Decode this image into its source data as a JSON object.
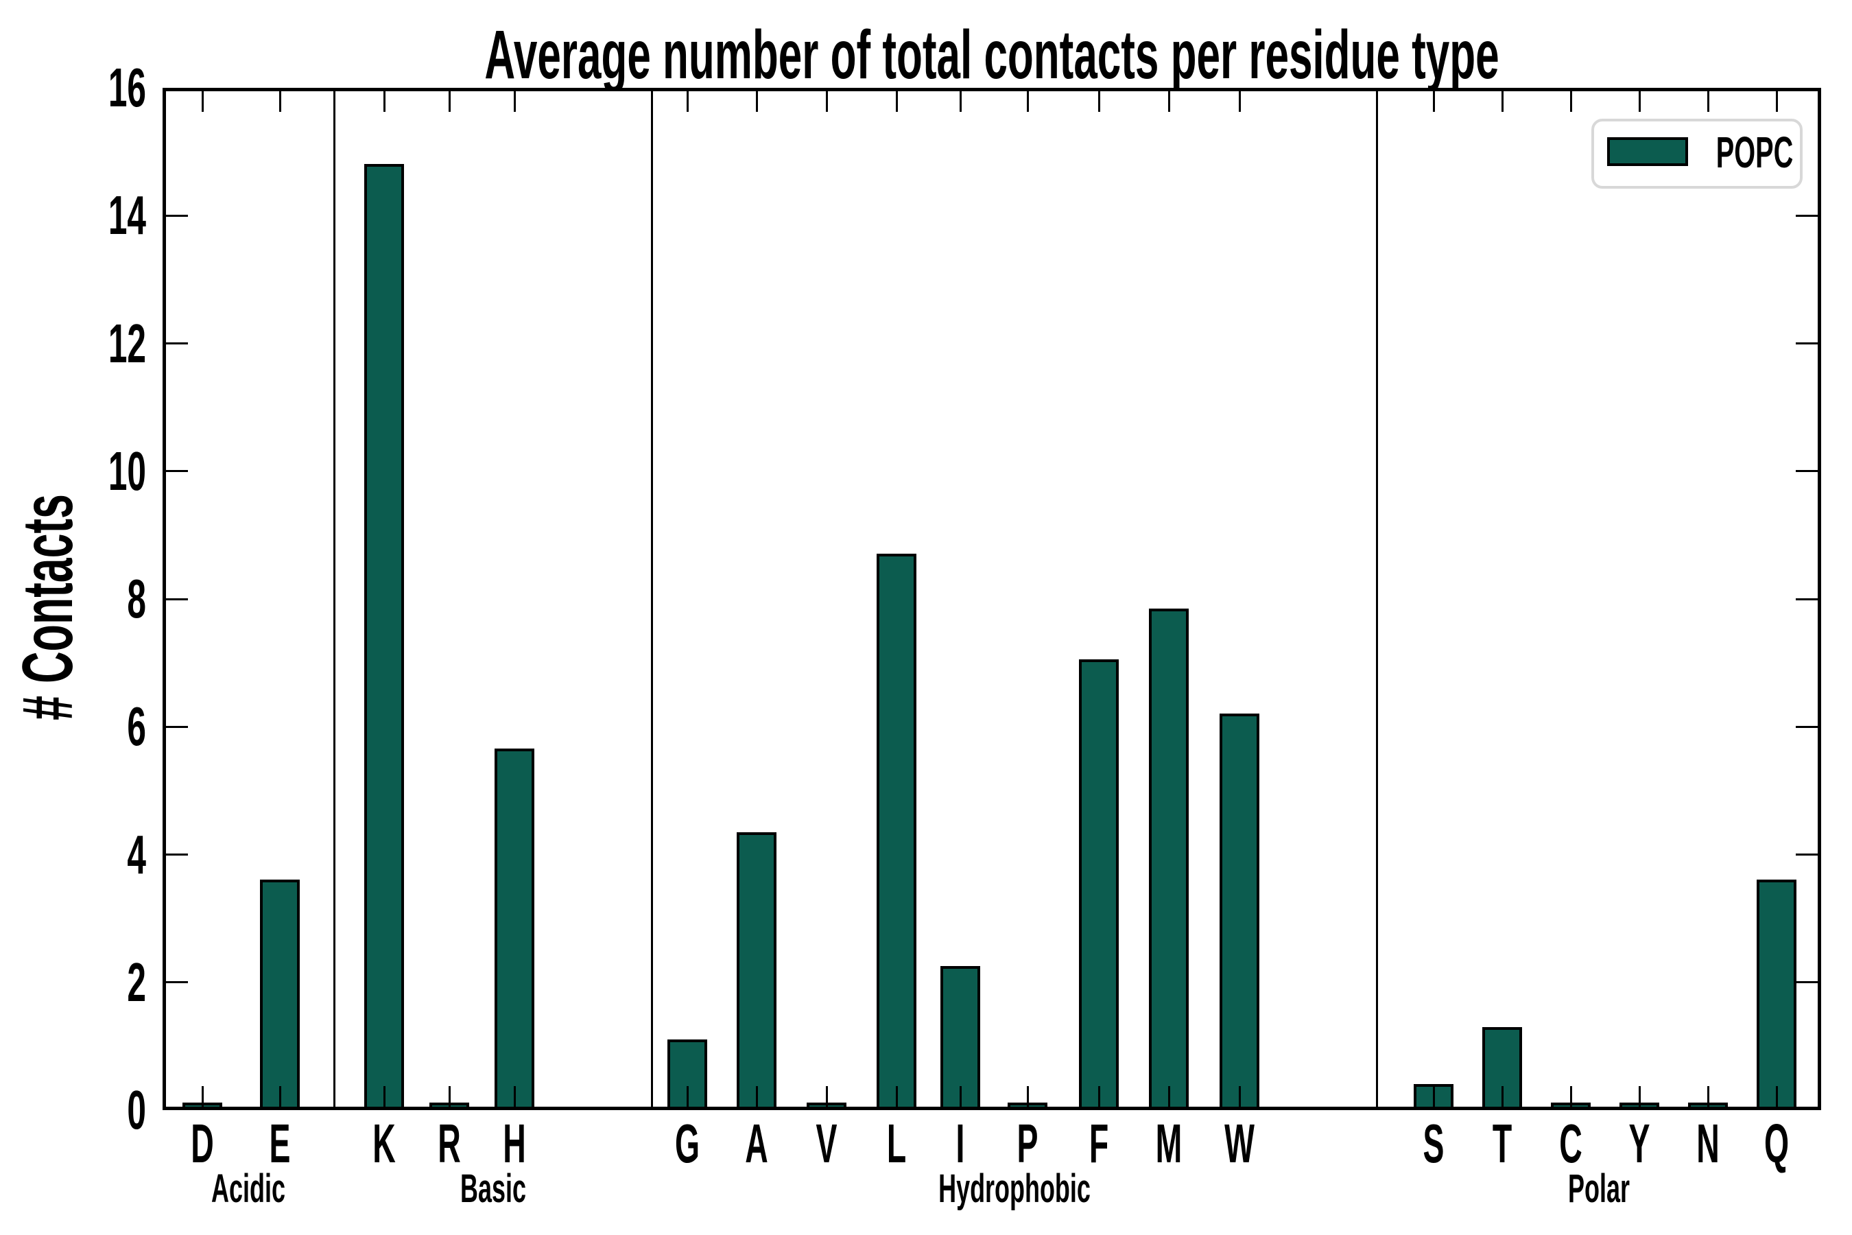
{
  "figure": {
    "title": "Average number of total contacts per residue type",
    "y_axis_label": "# Contacts"
  },
  "legend": {
    "label": "POPC",
    "position": "upper right"
  },
  "colors": {
    "bar_fill": "#0c5c4f",
    "bar_edge": "#000000",
    "legend_border": "#d8d8d8",
    "text": "#000000",
    "background": "#ffffff"
  },
  "chart_data": {
    "type": "bar",
    "title": "Average number of total contacts per residue type",
    "xlabel": "",
    "ylabel": "# Contacts",
    "ylim": [
      0,
      16
    ],
    "yticks": [
      0,
      2,
      4,
      6,
      8,
      10,
      12,
      14,
      16
    ],
    "grid": false,
    "legend_position": "upper right",
    "categories": [
      "D",
      "E",
      "K",
      "R",
      "H",
      "G",
      "A",
      "V",
      "L",
      "I",
      "P",
      "F",
      "M",
      "W",
      "S",
      "T",
      "C",
      "Y",
      "N",
      "Q"
    ],
    "groups": [
      {
        "label": "Acidic",
        "categories": [
          "D",
          "E"
        ]
      },
      {
        "label": "Basic",
        "categories": [
          "K",
          "R",
          "H"
        ]
      },
      {
        "label": "Hydrophobic",
        "categories": [
          "G",
          "A",
          "V",
          "L",
          "I",
          "P",
          "F",
          "M",
          "W"
        ]
      },
      {
        "label": "Polar",
        "categories": [
          "S",
          "T",
          "C",
          "Y",
          "N",
          "Q"
        ]
      }
    ],
    "series": [
      {
        "name": "POPC",
        "color": "#0c5c4f",
        "values": [
          0.03,
          3.55,
          14.75,
          0.03,
          5.6,
          1.05,
          4.3,
          0.04,
          8.65,
          2.2,
          0.04,
          7.0,
          7.8,
          6.15,
          0.35,
          1.25,
          0.02,
          0.03,
          0.05,
          3.55
        ]
      }
    ]
  }
}
